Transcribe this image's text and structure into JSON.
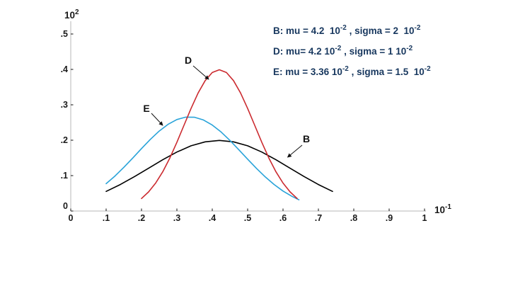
{
  "canvas": {
    "background": "#ffffff"
  },
  "colors": {
    "axis_line": "#b7b7b7",
    "tick_mark": "#3a3a3a",
    "tick_text": "#1a1a1a",
    "legend_text": "#17375e",
    "annotation": "#111111",
    "series_B": "#000000",
    "series_D": "#cb2a2f",
    "series_E": "#29a3d9"
  },
  "legend": {
    "lines": [
      {
        "name": "legend-line-B",
        "segments": [
          {
            "t": "B: mu = 4.2  10"
          },
          {
            "t": "-2",
            "sup": true
          },
          {
            "t": " , sigma = 2  10"
          },
          {
            "t": "-2",
            "sup": true
          }
        ]
      },
      {
        "name": "legend-line-D",
        "segments": [
          {
            "t": "D: mu= 4.2 10"
          },
          {
            "t": "-2",
            "sup": true
          },
          {
            "t": " , sigma = 1 10"
          },
          {
            "t": "-2",
            "sup": true
          }
        ]
      },
      {
        "name": "legend-line-E",
        "segments": [
          {
            "t": "E: mu = 3.36 10"
          },
          {
            "t": "-2",
            "sup": true
          },
          {
            "t": " , sigma = 1.5  10"
          },
          {
            "t": "-2",
            "sup": true
          }
        ]
      }
    ]
  },
  "chart_data": {
    "type": "line",
    "title": "",
    "grid": false,
    "x_axis": {
      "scale_label": {
        "base": "10",
        "exp": "-1"
      },
      "range": [
        0,
        1
      ],
      "ticks": [
        {
          "label": "0",
          "value": 0.0
        },
        {
          "label": ".1",
          "value": 0.1
        },
        {
          "label": ".2",
          "value": 0.2
        },
        {
          "label": ".3",
          "value": 0.3
        },
        {
          "label": ".4",
          "value": 0.4
        },
        {
          "label": ".5",
          "value": 0.5
        },
        {
          "label": ".6",
          "value": 0.6
        },
        {
          "label": ".7",
          "value": 0.7
        },
        {
          "label": ".8",
          "value": 0.8
        },
        {
          "label": ".9",
          "value": 0.9
        },
        {
          "label": "1",
          "value": 1.0
        }
      ]
    },
    "y_axis": {
      "scale_label": {
        "base": "10",
        "exp": "2"
      },
      "range": [
        0,
        0.5
      ],
      "ticks": [
        {
          "label": "0",
          "value": 0.0
        },
        {
          "label": ".1",
          "value": 0.1
        },
        {
          "label": ".2",
          "value": 0.2
        },
        {
          "label": ".3",
          "value": 0.3
        },
        {
          "label": ".4",
          "value": 0.4
        },
        {
          "label": ".5",
          "value": 0.5
        }
      ]
    },
    "series": [
      {
        "name": "B",
        "mu": "4.2 10^-2",
        "sigma": "2 10^-2",
        "color_key": "series_B",
        "points": [
          [
            0.1,
            0.0555
          ],
          [
            0.14,
            0.0749
          ],
          [
            0.18,
            0.0971
          ],
          [
            0.22,
            0.121
          ],
          [
            0.26,
            0.1449
          ],
          [
            0.3,
            0.1666
          ],
          [
            0.34,
            0.1842
          ],
          [
            0.38,
            0.1955
          ],
          [
            0.42,
            0.1995
          ],
          [
            0.46,
            0.1955
          ],
          [
            0.5,
            0.1842
          ],
          [
            0.54,
            0.1666
          ],
          [
            0.58,
            0.1449
          ],
          [
            0.62,
            0.121
          ],
          [
            0.66,
            0.0971
          ],
          [
            0.7,
            0.0749
          ],
          [
            0.74,
            0.0555
          ]
        ]
      },
      {
        "name": "E",
        "mu": "3.36 10^-2",
        "sigma": "1.5 10^-2",
        "color_key": "series_E",
        "points": [
          [
            0.1,
            0.0771
          ],
          [
            0.125,
            0.0989
          ],
          [
            0.15,
            0.1233
          ],
          [
            0.175,
            0.1495
          ],
          [
            0.2,
            0.1764
          ],
          [
            0.225,
            0.2023
          ],
          [
            0.25,
            0.2257
          ],
          [
            0.275,
            0.2449
          ],
          [
            0.3,
            0.2584
          ],
          [
            0.325,
            0.2653
          ],
          [
            0.35,
            0.2648
          ],
          [
            0.375,
            0.2572
          ],
          [
            0.4,
            0.2429
          ],
          [
            0.425,
            0.2231
          ],
          [
            0.45,
            0.1993
          ],
          [
            0.475,
            0.1731
          ],
          [
            0.5,
            0.1463
          ],
          [
            0.525,
            0.1203
          ],
          [
            0.55,
            0.0961
          ],
          [
            0.575,
            0.0747
          ],
          [
            0.6,
            0.0565
          ],
          [
            0.625,
            0.0416
          ],
          [
            0.645,
            0.0319
          ]
        ]
      },
      {
        "name": "D",
        "mu": "4.2 10^-2",
        "sigma": "1 10^-2",
        "color_key": "series_D",
        "points": [
          [
            0.2,
            0.0355
          ],
          [
            0.22,
            0.054
          ],
          [
            0.24,
            0.079
          ],
          [
            0.26,
            0.1109
          ],
          [
            0.28,
            0.1497
          ],
          [
            0.3,
            0.1942
          ],
          [
            0.32,
            0.242
          ],
          [
            0.34,
            0.2897
          ],
          [
            0.36,
            0.3333
          ],
          [
            0.38,
            0.3683
          ],
          [
            0.4,
            0.3911
          ],
          [
            0.42,
            0.399
          ],
          [
            0.44,
            0.3911
          ],
          [
            0.46,
            0.3683
          ],
          [
            0.48,
            0.3333
          ],
          [
            0.5,
            0.2897
          ],
          [
            0.52,
            0.242
          ],
          [
            0.54,
            0.1942
          ],
          [
            0.56,
            0.1497
          ],
          [
            0.58,
            0.1109
          ],
          [
            0.6,
            0.079
          ],
          [
            0.62,
            0.054
          ],
          [
            0.64,
            0.0355
          ]
        ]
      }
    ],
    "annotations": [
      {
        "text": "D",
        "label_xy": [
          0.332,
          0.426
        ],
        "arrow_from": [
          0.346,
          0.41
        ],
        "arrow_to": [
          0.39,
          0.372
        ]
      },
      {
        "text": "E",
        "label_xy": [
          0.214,
          0.29
        ],
        "arrow_from": [
          0.228,
          0.276
        ],
        "arrow_to": [
          0.26,
          0.242
        ]
      },
      {
        "text": "B",
        "label_xy": [
          0.666,
          0.204
        ],
        "arrow_from": [
          0.654,
          0.186
        ],
        "arrow_to": [
          0.613,
          0.152
        ]
      }
    ]
  }
}
